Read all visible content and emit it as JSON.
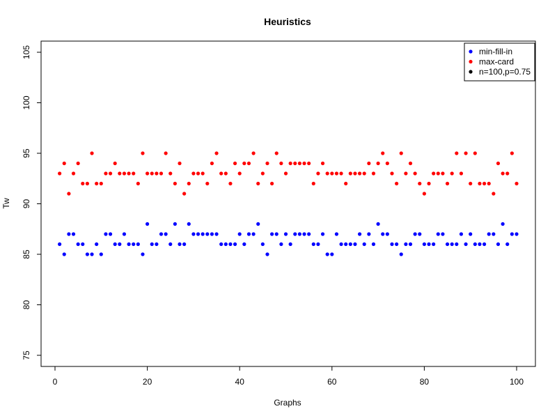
{
  "chart_data": {
    "type": "scatter",
    "title": "Heuristics",
    "xlabel": "Graphs",
    "ylabel": "Tw",
    "xlim": [
      0,
      100
    ],
    "ylim": [
      75,
      105
    ],
    "x_ticks": [
      0,
      20,
      40,
      60,
      80,
      100
    ],
    "y_ticks": [
      75,
      80,
      85,
      90,
      95,
      100,
      105
    ],
    "grid": false,
    "legend_position": "top-right",
    "legend": [
      {
        "label": "min-fill-in",
        "color": "#0000ff"
      },
      {
        "label": "max-card",
        "color": "#ff0000"
      },
      {
        "label": "n=100,p=0.75",
        "color": "#000000"
      }
    ],
    "series": [
      {
        "name": "min-fill-in",
        "color": "#0000ff",
        "x": [
          1,
          2,
          3,
          4,
          5,
          6,
          7,
          8,
          9,
          10,
          11,
          12,
          13,
          14,
          15,
          16,
          17,
          18,
          19,
          20,
          21,
          22,
          23,
          24,
          25,
          26,
          27,
          28,
          29,
          30,
          31,
          32,
          33,
          34,
          35,
          36,
          37,
          38,
          39,
          40,
          41,
          42,
          43,
          44,
          45,
          46,
          47,
          48,
          49,
          50,
          51,
          52,
          53,
          54,
          55,
          56,
          57,
          58,
          59,
          60,
          61,
          62,
          63,
          64,
          65,
          66,
          67,
          68,
          69,
          70,
          71,
          72,
          73,
          74,
          75,
          76,
          77,
          78,
          79,
          80,
          81,
          82,
          83,
          84,
          85,
          86,
          87,
          88,
          89,
          90,
          91,
          92,
          93,
          94,
          95,
          96,
          97,
          98,
          99,
          100
        ],
        "y": [
          86,
          85,
          87,
          87,
          86,
          86,
          85,
          85,
          86,
          85,
          87,
          87,
          86,
          86,
          87,
          86,
          86,
          86,
          85,
          88,
          86,
          86,
          87,
          87,
          86,
          88,
          86,
          86,
          88,
          87,
          87,
          87,
          87,
          87,
          87,
          86,
          86,
          86,
          86,
          87,
          86,
          87,
          87,
          88,
          86,
          85,
          87,
          87,
          86,
          87,
          86,
          87,
          87,
          87,
          87,
          86,
          86,
          87,
          85,
          85,
          87,
          86,
          86,
          86,
          86,
          87,
          86,
          87,
          86,
          88,
          87,
          87,
          86,
          86,
          85,
          86,
          86,
          87,
          87,
          86,
          86,
          86,
          87,
          87,
          86,
          86,
          86,
          87,
          86,
          87,
          86,
          86,
          86,
          87,
          87,
          86,
          88,
          86,
          87,
          87
        ]
      },
      {
        "name": "max-card",
        "color": "#ff0000",
        "x": [
          1,
          2,
          3,
          4,
          5,
          6,
          7,
          8,
          9,
          10,
          11,
          12,
          13,
          14,
          15,
          16,
          17,
          18,
          19,
          20,
          21,
          22,
          23,
          24,
          25,
          26,
          27,
          28,
          29,
          30,
          31,
          32,
          33,
          34,
          35,
          36,
          37,
          38,
          39,
          40,
          41,
          42,
          43,
          44,
          45,
          46,
          47,
          48,
          49,
          50,
          51,
          52,
          53,
          54,
          55,
          56,
          57,
          58,
          59,
          60,
          61,
          62,
          63,
          64,
          65,
          66,
          67,
          68,
          69,
          70,
          71,
          72,
          73,
          74,
          75,
          76,
          77,
          78,
          79,
          80,
          81,
          82,
          83,
          84,
          85,
          86,
          87,
          88,
          89,
          90,
          91,
          92,
          93,
          94,
          95,
          96,
          97,
          98,
          99,
          100
        ],
        "y": [
          93,
          94,
          91,
          93,
          94,
          92,
          92,
          95,
          92,
          92,
          93,
          93,
          94,
          93,
          93,
          93,
          93,
          92,
          95,
          93,
          93,
          93,
          93,
          95,
          93,
          92,
          94,
          91,
          92,
          93,
          93,
          93,
          92,
          94,
          95,
          93,
          93,
          92,
          94,
          93,
          94,
          94,
          95,
          92,
          93,
          94,
          92,
          95,
          94,
          93,
          94,
          94,
          94,
          94,
          94,
          92,
          93,
          94,
          93,
          93,
          93,
          93,
          92,
          93,
          93,
          93,
          93,
          94,
          93,
          94,
          95,
          94,
          93,
          92,
          95,
          93,
          94,
          93,
          92,
          91,
          92,
          93,
          93,
          93,
          92,
          93,
          95,
          93,
          95,
          92,
          95,
          92,
          92,
          92,
          91,
          94,
          93,
          93,
          95,
          92
        ]
      }
    ]
  }
}
